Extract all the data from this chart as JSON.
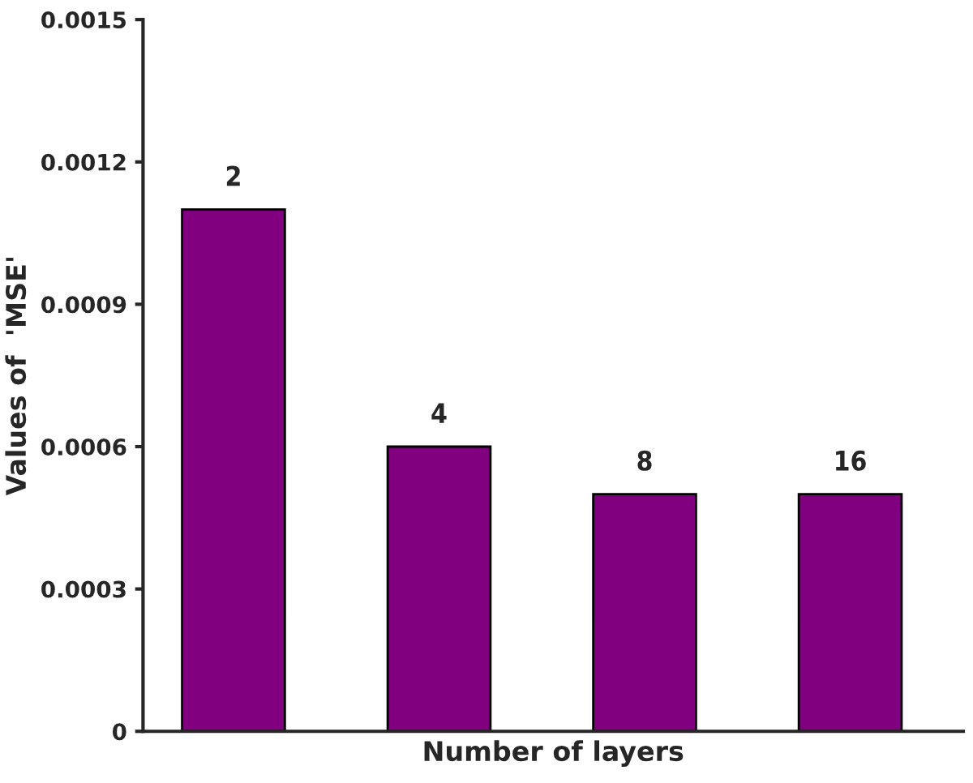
{
  "chart_data": {
    "type": "bar",
    "xlabel": "Number of layers",
    "ylabel": "Values of  'MSE'",
    "categories": [
      "2",
      "4",
      "8",
      "16"
    ],
    "values": [
      0.0011,
      0.0006,
      0.0005,
      0.0005
    ],
    "color": "#800080",
    "ylim": [
      0,
      0.0015
    ],
    "yticks": [
      0,
      0.0003,
      0.0006,
      0.0009,
      0.0012,
      0.0015
    ],
    "grid": false
  }
}
